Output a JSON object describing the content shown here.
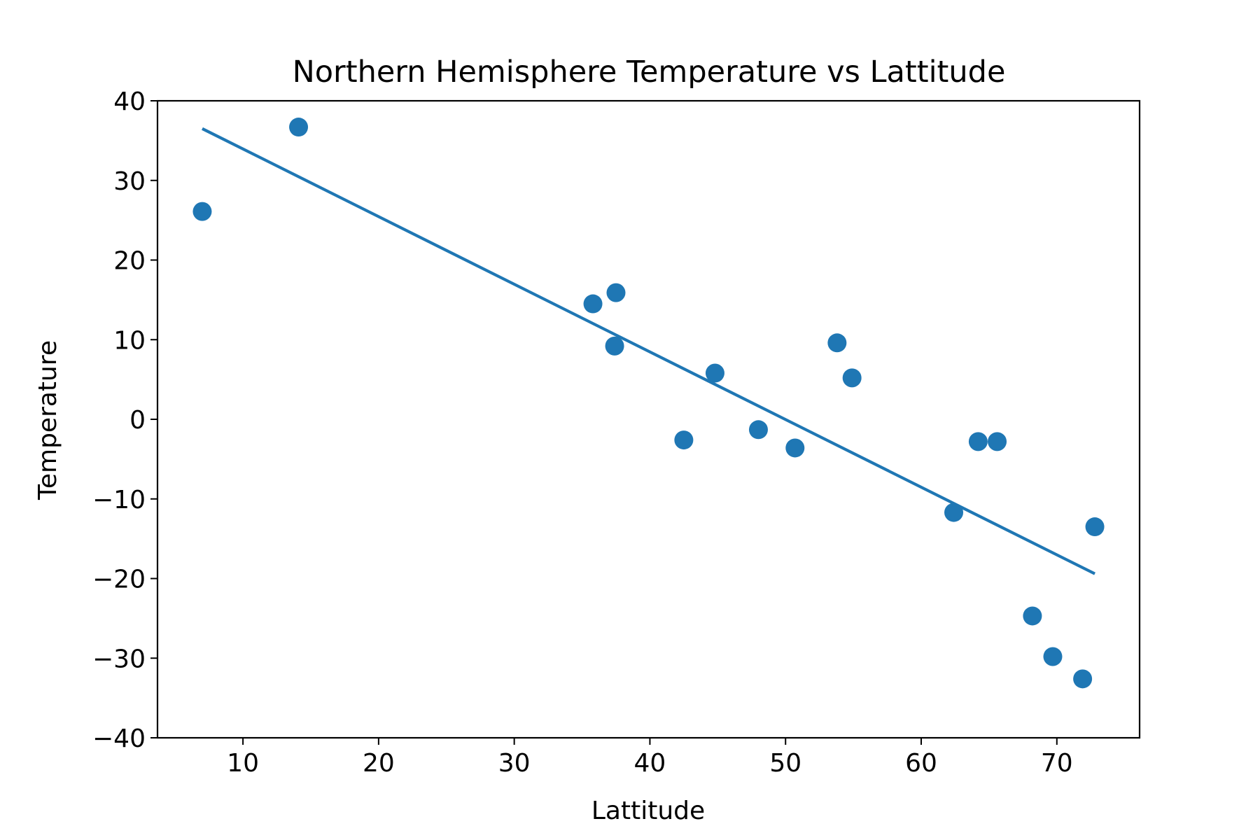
{
  "chart_data": {
    "type": "scatter",
    "title": "Northern Hemisphere Temperature vs Lattitude",
    "xlabel": "Lattitude",
    "ylabel": "Temperature",
    "xlim": [
      3.7,
      76.1
    ],
    "ylim": [
      -40,
      40
    ],
    "xticks": [
      10,
      20,
      30,
      40,
      50,
      60,
      70
    ],
    "yticks": [
      -40,
      -30,
      -20,
      -10,
      0,
      10,
      20,
      30,
      40
    ],
    "xtick_labels": [
      "10",
      "20",
      "30",
      "40",
      "50",
      "60",
      "70"
    ],
    "ytick_labels": [
      "−40",
      "−30",
      "−20",
      "−10",
      "0",
      "10",
      "20",
      "30",
      "40"
    ],
    "grid": false,
    "color": "#1f77b4",
    "series": [
      {
        "type": "scatter",
        "x": [
          7.0,
          14.1,
          35.8,
          37.5,
          37.4,
          42.5,
          44.8,
          48.0,
          50.7,
          53.8,
          54.9,
          62.4,
          64.2,
          65.6,
          68.2,
          69.7,
          71.9,
          72.8
        ],
        "y": [
          26.1,
          36.7,
          14.5,
          15.9,
          9.2,
          -2.6,
          5.8,
          -1.3,
          -3.6,
          9.6,
          5.2,
          -11.7,
          -2.8,
          -2.8,
          -24.7,
          -29.8,
          -32.6,
          -13.5
        ]
      },
      {
        "type": "line",
        "x": [
          7.0,
          72.8
        ],
        "y": [
          36.5,
          -19.4
        ]
      }
    ]
  }
}
